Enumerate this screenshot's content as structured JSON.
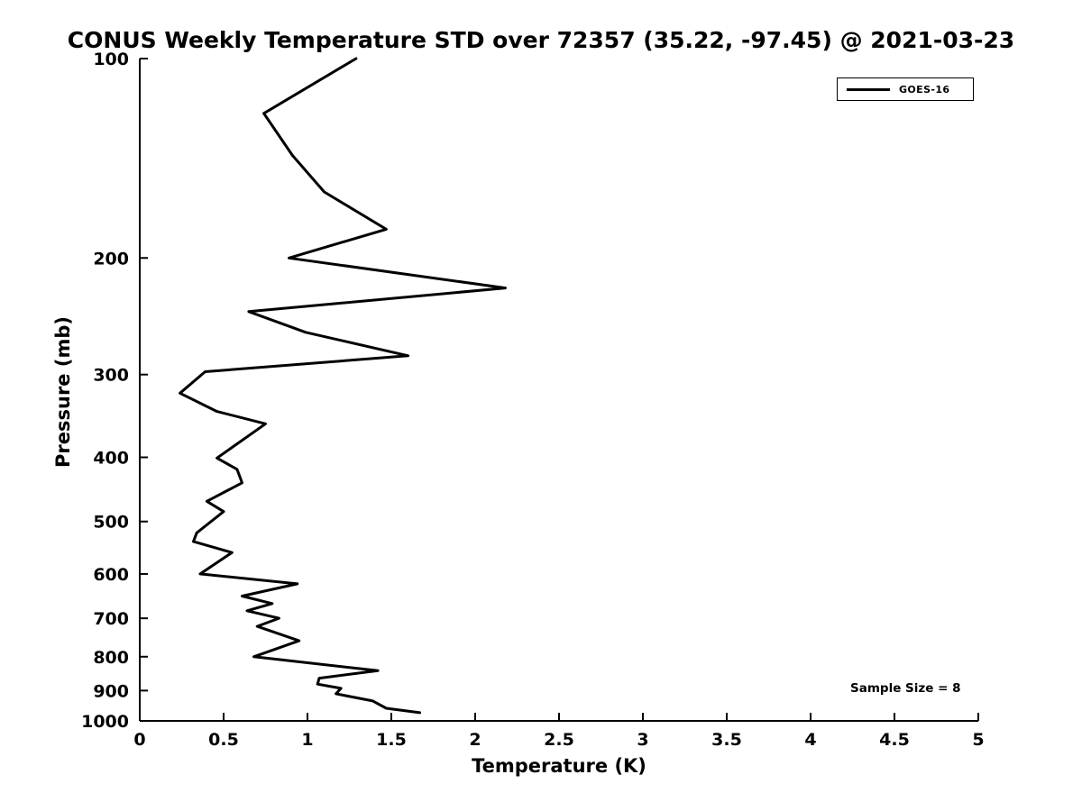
{
  "annotation": "Sample Size = 8",
  "chart_data": {
    "type": "line",
    "title": "CONUS Weekly Temperature STD over 72357 (35.22, -97.45) @ 2021-03-23",
    "xlabel": "Temperature (K)",
    "ylabel": "Pressure (mb)",
    "xlim": [
      0,
      5
    ],
    "ylim": [
      100,
      1000
    ],
    "yscale": "log",
    "y_axis_reversed": true,
    "grid": false,
    "xticks": [
      0,
      0.5,
      1,
      1.5,
      2,
      2.5,
      3,
      3.5,
      4,
      4.5,
      5
    ],
    "xtick_labels": [
      "0",
      "0.5",
      "1",
      "1.5",
      "2",
      "2.5",
      "3",
      "3.5",
      "4",
      "4.5",
      "5"
    ],
    "yticks": [
      100,
      200,
      300,
      400,
      500,
      600,
      700,
      800,
      900,
      1000
    ],
    "ytick_labels": [
      "100",
      "200",
      "300",
      "400",
      "500",
      "600",
      "700",
      "800",
      "900",
      "1000"
    ],
    "legend": {
      "position": "top-right",
      "entries": [
        "GOES-16"
      ]
    },
    "series": [
      {
        "name": "GOES-16",
        "color": "#000000",
        "points_format": [
          "pressure_mb",
          "temperature_std_K"
        ],
        "points": [
          [
            100,
            1.29
          ],
          [
            121,
            0.74
          ],
          [
            140,
            0.91
          ],
          [
            159,
            1.1
          ],
          [
            181,
            1.47
          ],
          [
            200,
            0.89
          ],
          [
            222,
            2.18
          ],
          [
            241,
            0.65
          ],
          [
            259,
            0.99
          ],
          [
            281,
            1.6
          ],
          [
            297,
            0.39
          ],
          [
            320,
            0.24
          ],
          [
            341,
            0.46
          ],
          [
            356,
            0.75
          ],
          [
            401,
            0.46
          ],
          [
            417,
            0.58
          ],
          [
            437,
            0.61
          ],
          [
            466,
            0.4
          ],
          [
            483,
            0.5
          ],
          [
            520,
            0.34
          ],
          [
            536,
            0.32
          ],
          [
            557,
            0.55
          ],
          [
            600,
            0.36
          ],
          [
            621,
            0.94
          ],
          [
            648,
            0.61
          ],
          [
            665,
            0.79
          ],
          [
            682,
            0.64
          ],
          [
            700,
            0.83
          ],
          [
            720,
            0.7
          ],
          [
            757,
            0.95
          ],
          [
            800,
            0.68
          ],
          [
            840,
            1.42
          ],
          [
            862,
            1.07
          ],
          [
            880,
            1.06
          ],
          [
            893,
            1.2
          ],
          [
            910,
            1.17
          ],
          [
            933,
            1.39
          ],
          [
            957,
            1.47
          ],
          [
            972,
            1.67
          ]
        ]
      }
    ]
  }
}
